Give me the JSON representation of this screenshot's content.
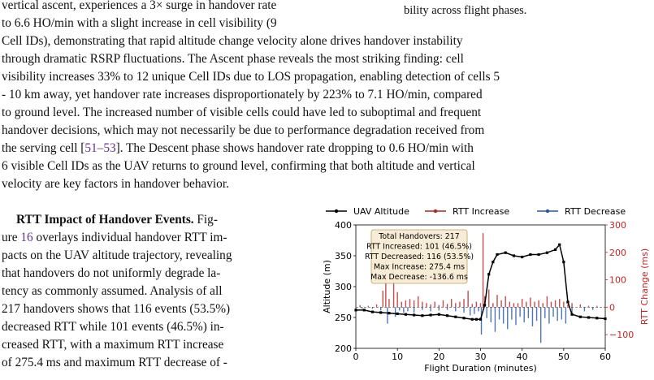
{
  "text": {
    "top_left_lines": [
      "vertical ascent, experiences a 3× surge in handover rate",
      "to 6.6 HO/min with a slight increase in cell visibility (9"
    ],
    "caption_fragment": "bility across flight phases.",
    "full_width_lines": [
      "Cell IDs), demonstrating that rapid altitude change velocity alone drives handover instability",
      "through dramatic RSRP fluctuations. The Ascent phase reveals the most striking finding: cell",
      "visibility increases 33% to 12 unique Cell IDs due to LOS propagation, enabling detection of cells 5",
      "- 10 km away, yet handover rate increases disproportionately by 223% to 7.1 HO/min, compared",
      "to ground level. The increased number of visible cells could have led to suboptimal and frequent",
      "handover decisions, which may not necessarily be due to performance degradation received from",
      "the serving cell [",
      "51–53",
      "]. The Descent phase shows handover rate dropping to 0.6 HO/min with",
      "6 visible Cell IDs as the UAV returns to ground level, confirming that both altitude and vertical",
      "velocity are key factors in handover behavior."
    ],
    "rtt_heading": "RTT Impact of Handover Events.",
    "left_col_lines": [
      " Fig-",
      "ure ",
      "16",
      " overlays individual handover RTT im-",
      "pacts on the UAV altitude trajectory, revealing",
      "that handovers do not uniformly degrade la-",
      "tency as commonly assumed. Analysis of all",
      "217 handovers shows that 116 events (53.5%)",
      "decreased RTT while 101 events (46.5%) in-",
      "creased RTT, with a maximum RTT increase",
      "of 275.4 ms and maximum RTT decrease of -"
    ]
  },
  "chart_data": {
    "type": "line+bar",
    "legend": [
      "UAV Altitude",
      "RTT Increase",
      "RTT Decrease"
    ],
    "legend_position": "top",
    "xlabel": "Flight Duration (minutes)",
    "ylabel_left": "Altitude (m)",
    "ylabel_right": "RTT Change (ms)",
    "xlim": [
      0,
      60
    ],
    "ylim_left": [
      200,
      400
    ],
    "ylim_right": [
      -150,
      300
    ],
    "xticks": [
      0,
      10,
      20,
      30,
      40,
      50,
      60
    ],
    "yticks_left": [
      200,
      250,
      300,
      350,
      400
    ],
    "yticks_right": [
      -100,
      0,
      100,
      200,
      300
    ],
    "annotation_box": [
      "Total Handovers: 217",
      "RTT Increased: 101 (46.5%)",
      "RTT Decreased: 116 (53.5%)",
      "Max Increase: 275.4 ms",
      "Max Decrease: -136.6 ms"
    ],
    "colors": {
      "altitude": "#000000",
      "increase": "#b22222",
      "decrease": "#2255aa",
      "right_axis": "#cc2222"
    },
    "altitude": {
      "x": [
        0,
        2,
        4,
        6,
        8,
        10,
        12,
        14,
        16,
        18,
        20,
        22,
        24,
        26,
        28,
        29,
        30,
        31,
        32,
        33,
        34,
        36,
        38,
        40,
        42,
        44,
        46,
        48,
        49,
        50,
        51,
        52,
        54,
        56,
        58,
        60
      ],
      "y": [
        262,
        262,
        259,
        258,
        257,
        256,
        255,
        254,
        253,
        254,
        255,
        253,
        251,
        249,
        247,
        247,
        247,
        270,
        320,
        340,
        352,
        355,
        350,
        348,
        352,
        352,
        355,
        360,
        368,
        340,
        275,
        255,
        251,
        250,
        249,
        248
      ]
    },
    "rtt_increase": {
      "x": [
        1,
        3,
        5,
        6.5,
        7.2,
        8,
        9.1,
        10,
        11,
        12,
        13,
        14,
        15,
        16,
        17,
        18,
        19,
        20,
        21,
        22,
        23,
        24,
        25,
        26,
        27,
        28,
        29,
        30,
        30.6,
        31,
        32,
        33,
        34,
        35,
        36,
        37,
        38,
        39,
        40,
        41,
        42,
        43,
        44,
        45,
        46,
        47,
        48,
        49,
        50,
        51,
        52,
        54,
        56,
        58
      ],
      "v": [
        8,
        5,
        10,
        60,
        250,
        30,
        180,
        55,
        20,
        25,
        30,
        25,
        40,
        20,
        15,
        10,
        20,
        8,
        25,
        12,
        30,
        15,
        20,
        30,
        60,
        12,
        20,
        15,
        270,
        40,
        65,
        15,
        45,
        25,
        40,
        20,
        15,
        15,
        30,
        20,
        35,
        20,
        25,
        15,
        40,
        20,
        25,
        30,
        20,
        10,
        15,
        10,
        5,
        5
      ]
    },
    "rtt_decrease": {
      "x": [
        1.5,
        4,
        6,
        7.6,
        9.5,
        10.5,
        11.5,
        12.5,
        14,
        16,
        18,
        20,
        22,
        24,
        26,
        27.5,
        28.5,
        29.5,
        30.2,
        31.5,
        32.5,
        33.5,
        34.5,
        35.5,
        36.5,
        37.5,
        38.5,
        39.5,
        40.5,
        41.5,
        42.5,
        43.5,
        44.5,
        45.5,
        46.5,
        47.5,
        48.5,
        49.5,
        50.5,
        52,
        55,
        57
      ],
      "v": [
        -5,
        -6,
        -12,
        -60,
        -35,
        -12,
        -20,
        -15,
        -20,
        -10,
        -15,
        -12,
        -10,
        -15,
        -20,
        -30,
        -25,
        -15,
        -100,
        -40,
        -55,
        -90,
        -45,
        -60,
        -80,
        -45,
        -65,
        -35,
        -55,
        -40,
        -70,
        -50,
        -130,
        -40,
        -60,
        -35,
        -50,
        -45,
        -60,
        -30,
        -15,
        -10
      ]
    }
  }
}
